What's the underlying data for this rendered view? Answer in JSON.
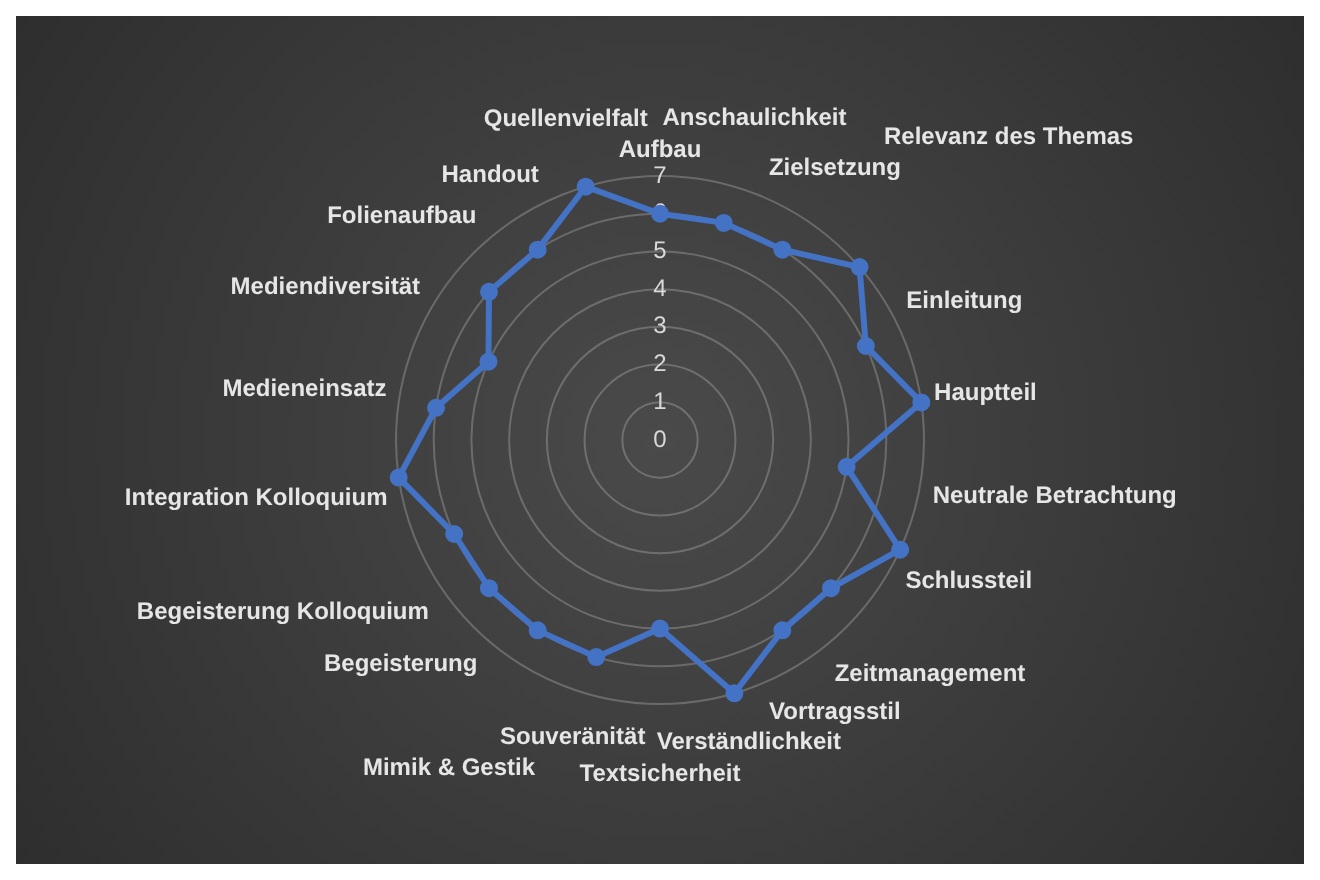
{
  "chart_data": {
    "type": "radar",
    "categories": [
      "Aufbau",
      "Anschaulichkeit",
      "Zielsetzung",
      "Relevanz des Themas",
      "Einleitung",
      "Hauptteil",
      "Neutrale Betrachtung",
      "Schlussteil",
      "Zeitmanagement",
      "Vortragsstil",
      "Verständlichkeit",
      "Textsicherheit",
      "Souveränität",
      "Mimik & Gestik",
      "Begeisterung",
      "Begeisterung Kolloquium",
      "Integration Kolloquium",
      "Medieneinsatz",
      "Mediendiversität",
      "Folienaufbau",
      "Handout",
      "Quellenvielfalt"
    ],
    "series": [
      {
        "color": "#4472c4",
        "values": [
          6,
          6,
          6,
          7,
          6,
          7,
          5,
          7,
          6,
          6,
          7,
          5,
          6,
          6,
          6,
          6,
          7,
          6,
          5,
          6,
          6,
          7
        ]
      }
    ],
    "ylim": [
      0,
      7
    ],
    "yticks": [
      0,
      1,
      2,
      3,
      4,
      5,
      6,
      7
    ],
    "grid": true,
    "legend": false,
    "marker": "circle"
  }
}
